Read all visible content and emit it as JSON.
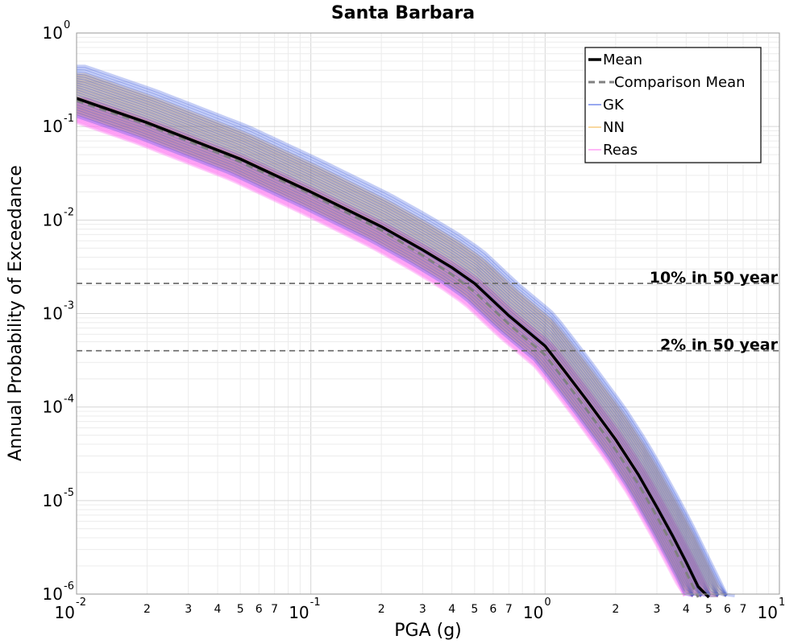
{
  "chart_data": {
    "type": "line",
    "title": "Santa Barbara",
    "xlabel": "PGA (g)",
    "ylabel": "Annual Probability of Exceedance",
    "xscale": "log",
    "yscale": "log",
    "xlim": [
      0.01,
      10
    ],
    "ylim": [
      1e-06,
      1
    ],
    "grid": true,
    "legend_position": "top-right",
    "x_tick_labels": [
      {
        "value": 0.01,
        "base": "10",
        "exp": "-2"
      },
      {
        "value": 0.1,
        "base": "10",
        "exp": "-1"
      },
      {
        "value": 1,
        "base": "10",
        "exp": "0"
      },
      {
        "value": 10,
        "base": "10",
        "exp": "1"
      }
    ],
    "x_minor_tick_labels": [
      {
        "value": 0.02,
        "label": "2"
      },
      {
        "value": 0.03,
        "label": "3"
      },
      {
        "value": 0.04,
        "label": "4"
      },
      {
        "value": 0.05,
        "label": "5"
      },
      {
        "value": 0.06,
        "label": "6"
      },
      {
        "value": 0.07,
        "label": "7"
      },
      {
        "value": 0.2,
        "label": "2"
      },
      {
        "value": 0.3,
        "label": "3"
      },
      {
        "value": 0.4,
        "label": "4"
      },
      {
        "value": 0.5,
        "label": "5"
      },
      {
        "value": 0.6,
        "label": "6"
      },
      {
        "value": 0.7,
        "label": "7"
      },
      {
        "value": 2,
        "label": "2"
      },
      {
        "value": 3,
        "label": "3"
      },
      {
        "value": 4,
        "label": "4"
      },
      {
        "value": 5,
        "label": "5"
      },
      {
        "value": 6,
        "label": "6"
      },
      {
        "value": 7,
        "label": "7"
      }
    ],
    "y_tick_labels": [
      {
        "value": 1,
        "base": "10",
        "exp": "0"
      },
      {
        "value": 0.1,
        "base": "10",
        "exp": "-1"
      },
      {
        "value": 0.01,
        "base": "10",
        "exp": "-2"
      },
      {
        "value": 0.001,
        "base": "10",
        "exp": "-3"
      },
      {
        "value": 0.0001,
        "base": "10",
        "exp": "-4"
      },
      {
        "value": 1e-05,
        "base": "10",
        "exp": "-5"
      },
      {
        "value": 1e-06,
        "base": "10",
        "exp": "-6"
      }
    ],
    "series": [
      {
        "name": "Mean",
        "color": "#000000",
        "style": "solid",
        "x": [
          0.01,
          0.02,
          0.05,
          0.1,
          0.2,
          0.3,
          0.4,
          0.5,
          0.7,
          1.0,
          1.2,
          1.5,
          2.0,
          2.5,
          3.0,
          3.5,
          4.0,
          4.5,
          5.0
        ],
        "y": [
          0.2,
          0.11,
          0.045,
          0.02,
          0.0085,
          0.0048,
          0.0031,
          0.0021,
          0.00095,
          0.00045,
          0.00025,
          0.00012,
          4.5e-05,
          1.9e-05,
          8.5e-06,
          4.2e-06,
          2.2e-06,
          1.2e-06,
          7e-07
        ]
      },
      {
        "name": "Comparison Mean",
        "color": "#808080",
        "style": "dashed",
        "x": [
          0.01,
          0.02,
          0.05,
          0.1,
          0.2,
          0.3,
          0.4,
          0.5,
          0.7,
          1.0,
          1.2,
          1.5,
          2.0,
          2.5,
          3.0,
          3.5,
          4.0,
          4.5
        ],
        "y": [
          0.19,
          0.105,
          0.042,
          0.019,
          0.0078,
          0.0042,
          0.0026,
          0.0017,
          0.00077,
          0.00036,
          0.0002,
          9.5e-05,
          3.5e-05,
          1.5e-05,
          6.7e-06,
          3.3e-06,
          1.7e-06,
          9e-07
        ]
      },
      {
        "name": "GK",
        "color": "#3050e0",
        "style": "band",
        "band_upper_factor": 2.2,
        "band_lower_factor": 0.7
      },
      {
        "name": "NN",
        "color": "#f0b040",
        "style": "band",
        "band_upper_factor": 1.8,
        "band_lower_factor": 0.75
      },
      {
        "name": "Reas",
        "color": "#ff70f0",
        "style": "band",
        "band_upper_factor": 1.0,
        "band_lower_factor": 0.6
      }
    ],
    "reference_lines": [
      {
        "label": "10% in 50 year",
        "y": 0.0021
      },
      {
        "label": "2% in 50 year",
        "y": 0.0004
      }
    ]
  }
}
